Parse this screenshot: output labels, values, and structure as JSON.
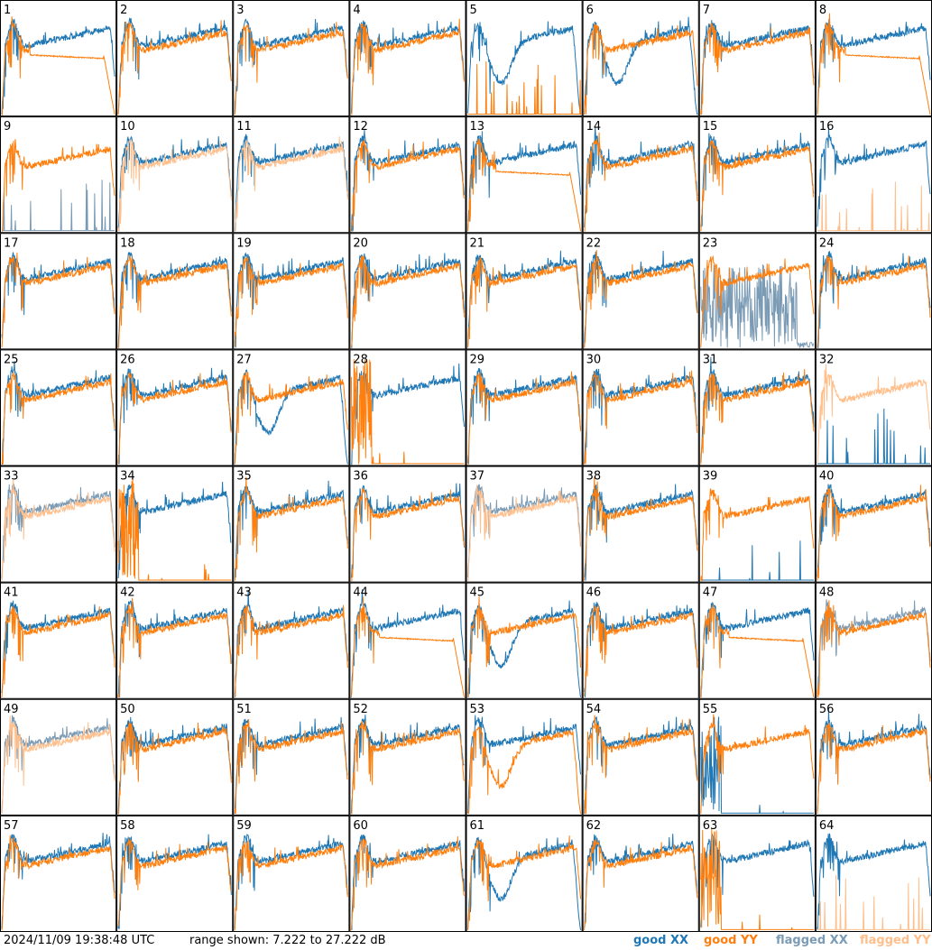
{
  "footer": {
    "timestamp": "2024/11/09 19:38:48 UTC",
    "range": "range shown: 7.222 to 27.222 dB"
  },
  "legend": [
    {
      "label": "good XX",
      "color": "#1f77b4"
    },
    {
      "label": "good YY",
      "color": "#ff7f0e"
    },
    {
      "label": "flagged XX",
      "color": "#7b9bb5"
    },
    {
      "label": "flagged YY",
      "color": "#ffbe8a"
    }
  ],
  "chart_data": {
    "type": "line",
    "layout": "8x8 small multiples",
    "ylim": [
      7.222,
      27.222
    ],
    "units": "dB",
    "panels": [
      {
        "id": "1",
        "xx": "good",
        "yy": "good",
        "yy_shape": "droop"
      },
      {
        "id": "2",
        "xx": "good",
        "yy": "good"
      },
      {
        "id": "3",
        "xx": "good",
        "yy": "good"
      },
      {
        "id": "4",
        "xx": "good",
        "yy": "good"
      },
      {
        "id": "5",
        "xx": "good",
        "yy": "good",
        "xx_shape": "dip",
        "yy_shape": "spikes"
      },
      {
        "id": "6",
        "xx": "good",
        "yy": "good",
        "xx_shape": "dip"
      },
      {
        "id": "7",
        "xx": "good",
        "yy": "good"
      },
      {
        "id": "8",
        "xx": "good",
        "yy": "good",
        "yy_shape": "droop"
      },
      {
        "id": "9",
        "xx": "flagged",
        "yy": "good",
        "xx_shape": "spikes"
      },
      {
        "id": "10",
        "xx": "good",
        "yy": "flagged"
      },
      {
        "id": "11",
        "xx": "good",
        "yy": "flagged"
      },
      {
        "id": "12",
        "xx": "good",
        "yy": "good"
      },
      {
        "id": "13",
        "xx": "good",
        "yy": "good",
        "yy_shape": "droop"
      },
      {
        "id": "14",
        "xx": "good",
        "yy": "good"
      },
      {
        "id": "15",
        "xx": "good",
        "yy": "good"
      },
      {
        "id": "16",
        "xx": "good",
        "yy": "flagged",
        "yy_shape": "spikes"
      },
      {
        "id": "17",
        "xx": "good",
        "yy": "good"
      },
      {
        "id": "18",
        "xx": "good",
        "yy": "good"
      },
      {
        "id": "19",
        "xx": "good",
        "yy": "good"
      },
      {
        "id": "20",
        "xx": "good",
        "yy": "good"
      },
      {
        "id": "21",
        "xx": "good",
        "yy": "good"
      },
      {
        "id": "22",
        "xx": "good",
        "yy": "good"
      },
      {
        "id": "23",
        "xx": "flagged",
        "yy": "good",
        "xx_shape": "noise"
      },
      {
        "id": "24",
        "xx": "good",
        "yy": "good"
      },
      {
        "id": "25",
        "xx": "good",
        "yy": "good"
      },
      {
        "id": "26",
        "xx": "good",
        "yy": "good"
      },
      {
        "id": "27",
        "xx": "good",
        "yy": "good",
        "xx_shape": "dip"
      },
      {
        "id": "28",
        "xx": "good",
        "yy": "good",
        "yy_shape": "burst"
      },
      {
        "id": "29",
        "xx": "good",
        "yy": "good"
      },
      {
        "id": "30",
        "xx": "good",
        "yy": "good"
      },
      {
        "id": "31",
        "xx": "good",
        "yy": "good"
      },
      {
        "id": "32",
        "xx": "good",
        "yy": "flagged",
        "xx_shape": "spikes"
      },
      {
        "id": "33",
        "xx": "flagged",
        "yy": "flagged"
      },
      {
        "id": "34",
        "xx": "good",
        "yy": "good",
        "yy_shape": "burst"
      },
      {
        "id": "35",
        "xx": "good",
        "yy": "good"
      },
      {
        "id": "36",
        "xx": "good",
        "yy": "good"
      },
      {
        "id": "37",
        "xx": "flagged",
        "yy": "flagged"
      },
      {
        "id": "38",
        "xx": "good",
        "yy": "good"
      },
      {
        "id": "39",
        "xx": "good",
        "yy": "good",
        "xx_shape": "spikes"
      },
      {
        "id": "40",
        "xx": "good",
        "yy": "good"
      },
      {
        "id": "41",
        "xx": "good",
        "yy": "good"
      },
      {
        "id": "42",
        "xx": "good",
        "yy": "good"
      },
      {
        "id": "43",
        "xx": "good",
        "yy": "good"
      },
      {
        "id": "44",
        "xx": "good",
        "yy": "good",
        "yy_shape": "droop"
      },
      {
        "id": "45",
        "xx": "good",
        "yy": "good",
        "xx_shape": "dip"
      },
      {
        "id": "46",
        "xx": "good",
        "yy": "good"
      },
      {
        "id": "47",
        "xx": "good",
        "yy": "good",
        "yy_shape": "droop"
      },
      {
        "id": "48",
        "xx": "flagged",
        "yy": "good"
      },
      {
        "id": "49",
        "xx": "flagged",
        "yy": "flagged"
      },
      {
        "id": "50",
        "xx": "good",
        "yy": "good"
      },
      {
        "id": "51",
        "xx": "good",
        "yy": "good"
      },
      {
        "id": "52",
        "xx": "good",
        "yy": "good"
      },
      {
        "id": "53",
        "xx": "good",
        "yy": "good",
        "yy_shape": "dip"
      },
      {
        "id": "54",
        "xx": "good",
        "yy": "good"
      },
      {
        "id": "55",
        "xx": "good",
        "yy": "good",
        "xx_shape": "burst"
      },
      {
        "id": "56",
        "xx": "good",
        "yy": "good"
      },
      {
        "id": "57",
        "xx": "good",
        "yy": "good"
      },
      {
        "id": "58",
        "xx": "good",
        "yy": "good"
      },
      {
        "id": "59",
        "xx": "good",
        "yy": "good"
      },
      {
        "id": "60",
        "xx": "good",
        "yy": "good"
      },
      {
        "id": "61",
        "xx": "good",
        "yy": "good",
        "xx_shape": "dip"
      },
      {
        "id": "62",
        "xx": "good",
        "yy": "good"
      },
      {
        "id": "63",
        "xx": "good",
        "yy": "good",
        "yy_shape": "burst"
      },
      {
        "id": "64",
        "xx": "good",
        "yy": "flagged",
        "yy_shape": "spikes"
      }
    ]
  }
}
